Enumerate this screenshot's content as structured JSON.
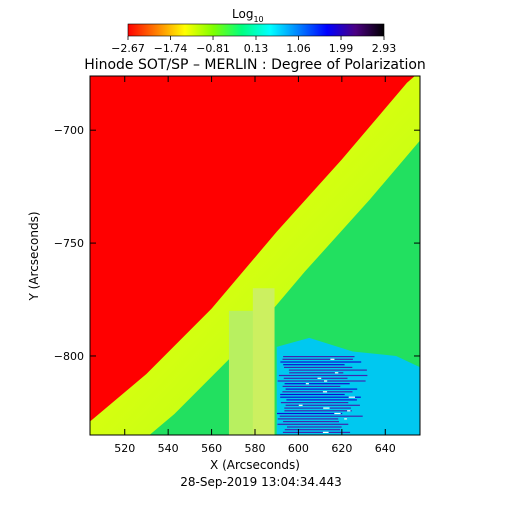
{
  "title": "Hinode SOT/SP – MERLIN : Degree of Polarization",
  "colorbar": {
    "label": "Log",
    "label_sub": "10",
    "ticks": [
      "-2.67",
      "-1.74",
      "-0.81",
      "0.13",
      "1.06",
      "1.99",
      "2.93"
    ],
    "range": [
      -2.67,
      2.93
    ],
    "colormap": [
      "#ff0000",
      "#ff7f00",
      "#ffff00",
      "#7fff00",
      "#00ff7f",
      "#00ffff",
      "#0080ff",
      "#0000ff",
      "#4b0082",
      "#000000"
    ]
  },
  "timestamp": "28-Sep-2019 13:04:34.443",
  "chart_data": {
    "type": "heatmap",
    "title": "Hinode SOT/SP – MERLIN : Degree of Polarization",
    "xlabel": "X (Arcseconds)",
    "ylabel": "Y (Arcseconds)",
    "xlim": [
      504,
      656
    ],
    "ylim": [
      -835,
      -676
    ],
    "x_ticks": [
      520,
      540,
      560,
      580,
      600,
      620,
      640
    ],
    "y_ticks": [
      -700,
      -750,
      -800
    ],
    "limb_curve": [
      [
        504,
        -829
      ],
      [
        530,
        -808
      ],
      [
        560,
        -779
      ],
      [
        590,
        -745
      ],
      [
        620,
        -713
      ],
      [
        650,
        -679
      ],
      [
        656,
        -674
      ]
    ],
    "regions": [
      {
        "name": "off-limb",
        "color": "#ff0000"
      },
      {
        "name": "limb band",
        "color": "#ffff00"
      },
      {
        "name": "disk",
        "color": "#22e060"
      },
      {
        "name": "high polarization patch",
        "color": "#0000ff"
      }
    ],
    "grid": false
  }
}
